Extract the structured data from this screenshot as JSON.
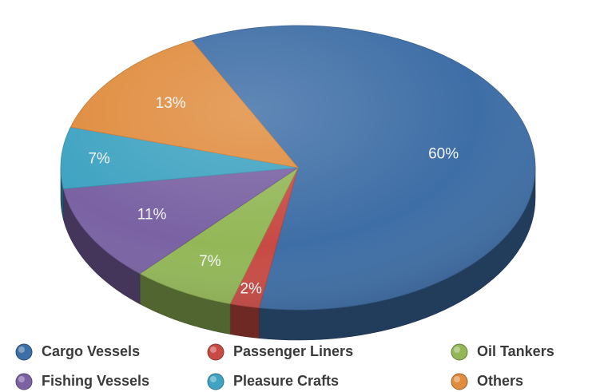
{
  "chart_data": {
    "type": "pie",
    "style": "3d",
    "categories": [
      "Cargo Vessels",
      "Passenger Liners",
      "Oil Tankers",
      "Fishing Vessels",
      "Pleasure Crafts",
      "Others"
    ],
    "values": [
      60,
      2,
      7,
      11,
      7,
      13
    ],
    "value_labels": [
      "60%",
      "2%",
      "7%",
      "11%",
      "7%",
      "13%"
    ],
    "colors": [
      "#3e6ea6",
      "#c84a44",
      "#93b757",
      "#7a62a3",
      "#3fa3c1",
      "#e08c3e"
    ],
    "legend_position": "bottom",
    "title": ""
  }
}
